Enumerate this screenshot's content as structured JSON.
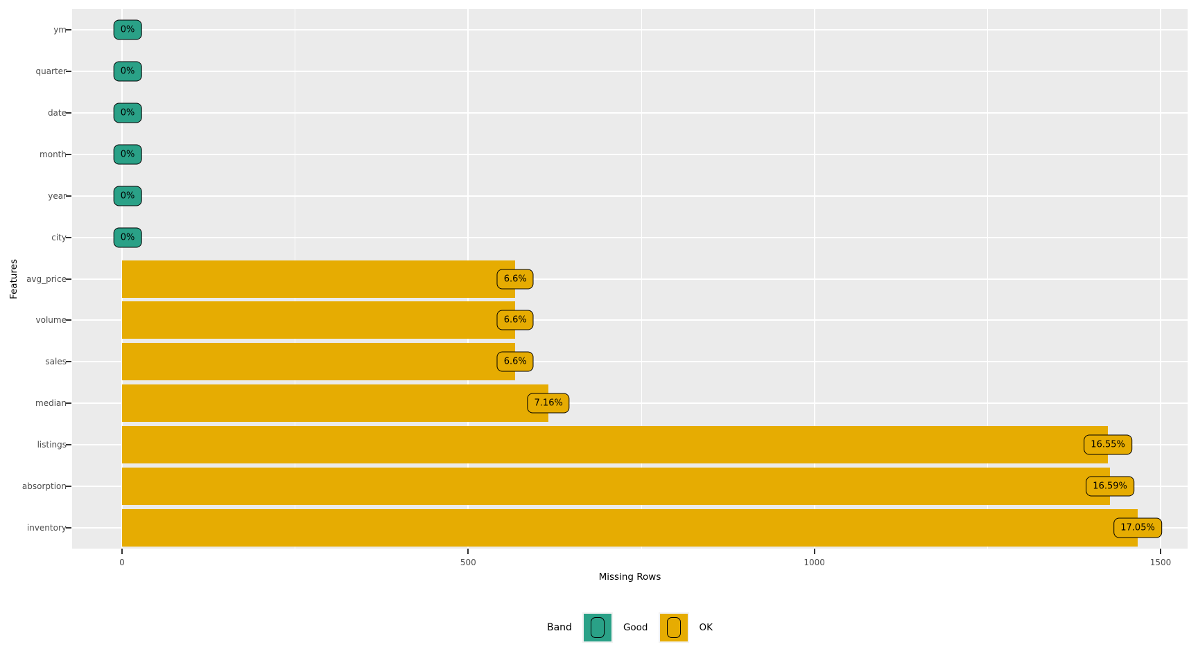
{
  "colors": {
    "good": "#2aa187",
    "ok": "#e6ac02",
    "panel_bg": "#ebebeb",
    "grid": "#ffffff",
    "tick_text": "#4d4d4d",
    "axis_text": "#000000"
  },
  "chart_data": {
    "type": "bar",
    "orientation": "horizontal",
    "xlabel": "Missing Rows",
    "ylabel": "Features",
    "x_ticks": [
      0,
      500,
      1000,
      1500
    ],
    "x_tick_labels": [
      "0",
      "500",
      "1000",
      "1500"
    ],
    "x_minor_ticks": [
      250,
      750,
      1250
    ],
    "xlim": [
      0,
      1539
    ],
    "grid": "on",
    "legend_position": "bottom",
    "features": [
      {
        "name": "ym",
        "band": "Good",
        "missing_rows": 0,
        "label": "0%"
      },
      {
        "name": "quarter",
        "band": "Good",
        "missing_rows": 0,
        "label": "0%"
      },
      {
        "name": "date",
        "band": "Good",
        "missing_rows": 0,
        "label": "0%"
      },
      {
        "name": "month",
        "band": "Good",
        "missing_rows": 0,
        "label": "0%"
      },
      {
        "name": "year",
        "band": "Good",
        "missing_rows": 0,
        "label": "0%"
      },
      {
        "name": "city",
        "band": "Good",
        "missing_rows": 0,
        "label": "0%"
      },
      {
        "name": "avg_price",
        "band": "OK",
        "missing_rows": 568,
        "label": "6.6%"
      },
      {
        "name": "volume",
        "band": "OK",
        "missing_rows": 568,
        "label": "6.6%"
      },
      {
        "name": "sales",
        "band": "OK",
        "missing_rows": 568,
        "label": "6.6%"
      },
      {
        "name": "median",
        "band": "OK",
        "missing_rows": 616,
        "label": "7.16%"
      },
      {
        "name": "listings",
        "band": "OK",
        "missing_rows": 1424,
        "label": "16.55%"
      },
      {
        "name": "absorption",
        "band": "OK",
        "missing_rows": 1427,
        "label": "16.59%"
      },
      {
        "name": "inventory",
        "band": "OK",
        "missing_rows": 1467,
        "label": "17.05%"
      }
    ],
    "legend": {
      "title": "Band",
      "entries": [
        {
          "label": "Good",
          "band": "Good"
        },
        {
          "label": "OK",
          "band": "OK"
        }
      ]
    }
  }
}
